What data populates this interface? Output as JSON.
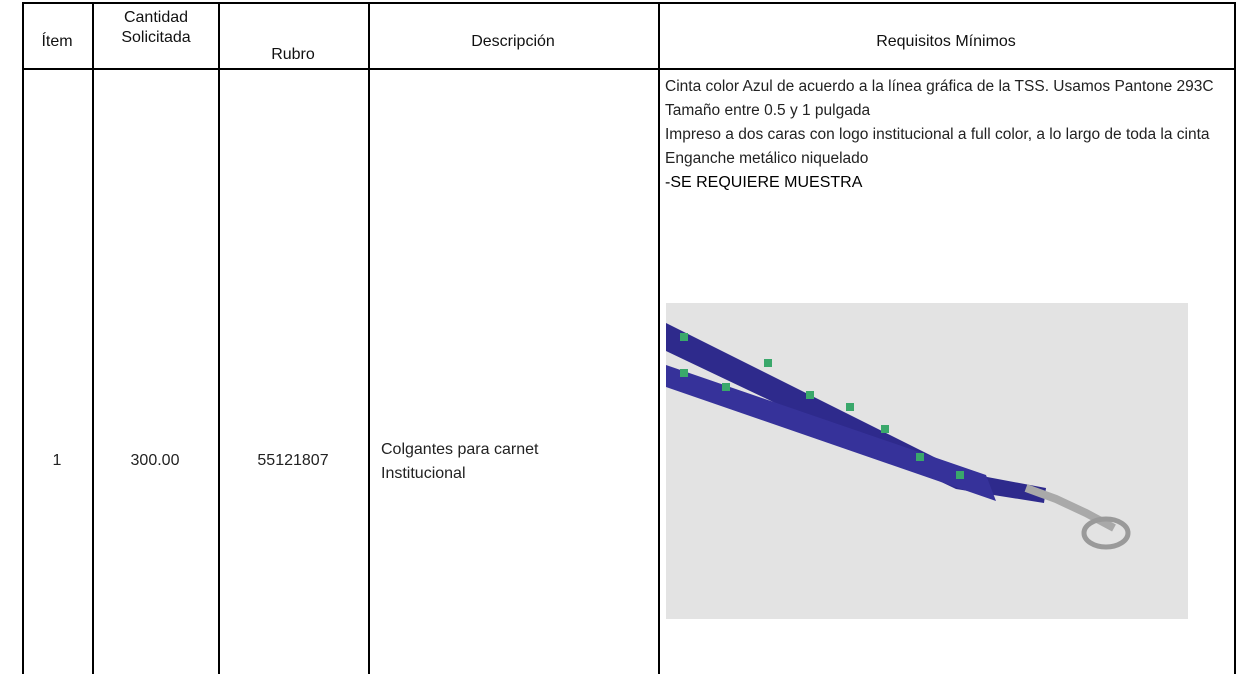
{
  "table": {
    "headers": [
      "Ítem",
      "Cantidad Solicitada",
      "Rubro",
      "Descripción",
      "Requisitos Mínimos"
    ],
    "rows": [
      {
        "item": "1",
        "quantity": "300.00",
        "rubro": "55121807",
        "description": "Colgantes para carnet Institucional",
        "requirements": [
          "Cinta color Azul de acuerdo a la línea gráfica de la TSS. Usamos Pantone 293C",
          "Tamaño entre 0.5 y 1 pulgada",
          "Impreso a dos caras con logo institucional a full color, a lo largo de toda la cinta",
          "Enganche metálico niquelado"
        ],
        "note": "-SE REQUIERE MUESTRA"
      }
    ]
  }
}
